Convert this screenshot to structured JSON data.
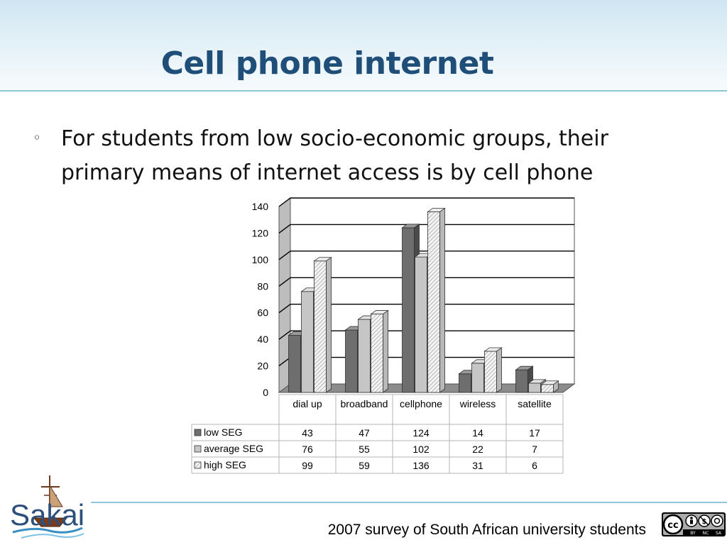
{
  "slide": {
    "title": "Cell phone internet",
    "bullet": "For students from low socio-economic groups, their primary means of internet access is by cell phone",
    "footer": "2007 survey of South African university students",
    "logo_text": "Sakai",
    "license": {
      "by": "BY",
      "nc": "NC",
      "sa": "SA"
    }
  },
  "chart_data": {
    "type": "bar",
    "categories": [
      "dial up",
      "broadband",
      "cellphone",
      "wireless",
      "satellite"
    ],
    "series": [
      {
        "name": "low SEG",
        "values": [
          43,
          47,
          124,
          14,
          17
        ]
      },
      {
        "name": "average SEG",
        "values": [
          76,
          55,
          102,
          22,
          7
        ]
      },
      {
        "name": "high SEG",
        "values": [
          99,
          59,
          136,
          31,
          6
        ]
      }
    ],
    "yticks": [
      0,
      20,
      40,
      60,
      80,
      100,
      120,
      140
    ],
    "ylim": [
      0,
      140
    ],
    "grid": true,
    "legend": "data-table-below",
    "series_colors": [
      "#707070",
      "#c8c8c8",
      "#f0f0f0"
    ]
  }
}
